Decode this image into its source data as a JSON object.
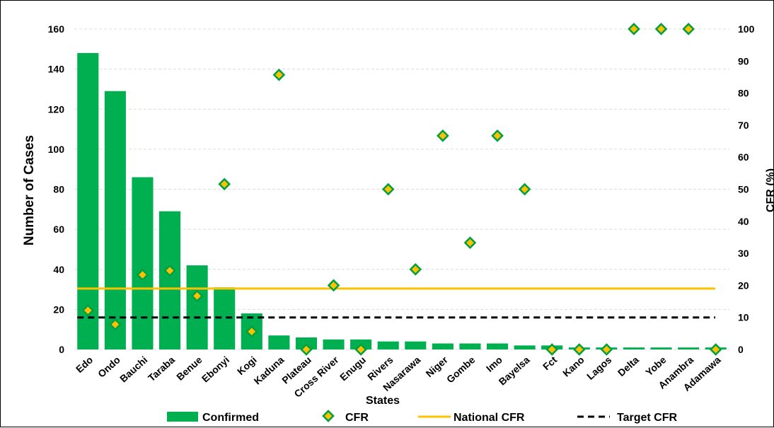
{
  "chart_data": {
    "type": "bar",
    "categories": [
      "Edo",
      "Ondo",
      "Bauchi",
      "Taraba",
      "Benue",
      "Ebonyi",
      "Kogi",
      "Kaduna",
      "Plateau",
      "Cross River",
      "Enugu",
      "Rivers",
      "Nasarawa",
      "Niger",
      "Gombe",
      "Imo",
      "Bayelsa",
      "Fct",
      "Kano",
      "Lagos",
      "Delta",
      "Yobe",
      "Anambra",
      "Adamawa"
    ],
    "xlabel": "States",
    "ylabel": "Number of Cases",
    "y2label": "CFR (%)",
    "ylim": [
      0,
      160
    ],
    "y2lim": [
      0,
      100
    ],
    "yticks": [
      0,
      20,
      40,
      60,
      80,
      100,
      120,
      140,
      160
    ],
    "y2ticks": [
      0,
      10,
      20,
      30,
      40,
      50,
      60,
      70,
      80,
      90,
      100
    ],
    "grid": true,
    "legend_position": "bottom",
    "series": [
      {
        "name": "Confirmed",
        "type": "bar",
        "axis": "left",
        "color": "#00b050",
        "values": [
          148,
          129,
          86,
          69,
          42,
          31,
          18,
          7,
          6,
          5,
          5,
          4,
          4,
          3,
          3,
          3,
          2,
          2,
          1,
          1,
          1,
          1,
          1,
          1
        ]
      },
      {
        "name": "CFR",
        "type": "scatter",
        "axis": "right",
        "marker_fill": "#ffc000",
        "marker_edge": "#00a040",
        "values": [
          12.2,
          7.8,
          23.3,
          24.6,
          16.7,
          51.6,
          5.6,
          85.7,
          0,
          20,
          0,
          50,
          25,
          66.7,
          33.3,
          66.7,
          50,
          0,
          0,
          0,
          100,
          100,
          100,
          0
        ]
      },
      {
        "name": "National CFR",
        "type": "line",
        "axis": "right",
        "color": "#ffc000",
        "value": 19
      },
      {
        "name": "Target CFR",
        "type": "line",
        "axis": "right",
        "color": "#000000",
        "dashed": true,
        "value": 10
      }
    ]
  }
}
